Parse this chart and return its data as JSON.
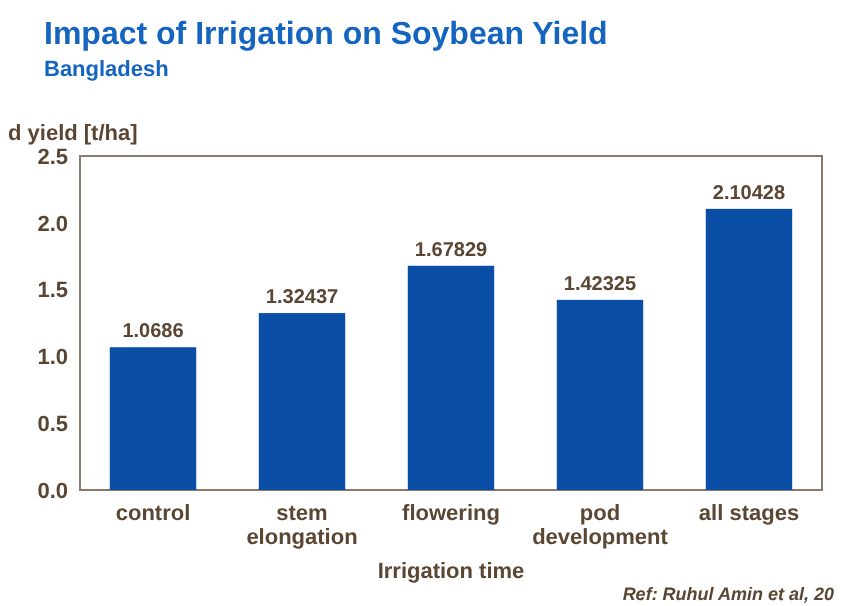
{
  "chart_data": {
    "type": "bar",
    "title": "Impact of Irrigation on Soybean Yield",
    "subtitle": "Bangladesh",
    "xlabel": "Irrigation time",
    "ylabel": "d yield [t/ha]",
    "categories": [
      "control",
      "stem elongation",
      "flowering",
      "pod development",
      "all stages"
    ],
    "values": [
      1.0686,
      1.32437,
      1.67829,
      1.42325,
      2.10428
    ],
    "color": "#0a4ea6",
    "ylim": [
      0,
      2.5
    ],
    "yticks": [
      {
        "value": 0,
        "label": "0.0"
      },
      {
        "value": 0.5,
        "label": "0.5"
      },
      {
        "value": 1,
        "label": "1.0"
      },
      {
        "value": 1.5,
        "label": "1.5"
      },
      {
        "value": 2,
        "label": "2.0"
      },
      {
        "value": 2.5,
        "label": "2.5"
      }
    ],
    "data_labels": true,
    "grid": false,
    "annotations": [
      "Ref: Ruhul Amin et al, 20"
    ]
  }
}
